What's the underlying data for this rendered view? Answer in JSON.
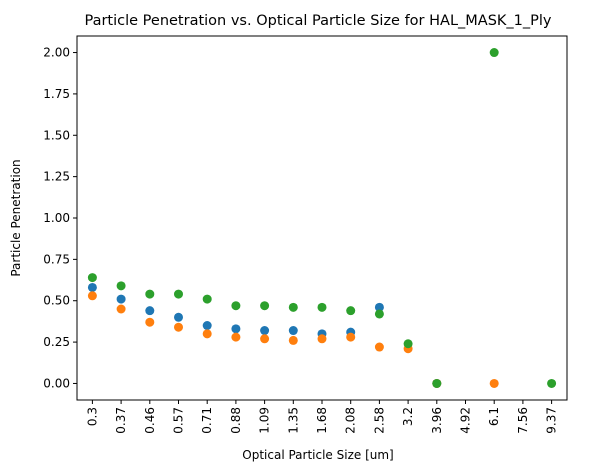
{
  "chart_data": {
    "type": "scatter",
    "title": "Particle Penetration vs. Optical Particle Size for HAL_MASK_1_Ply",
    "xlabel": "Optical Particle Size [um]",
    "ylabel": "Particle Penetration",
    "categories": [
      "0.3",
      "0.37",
      "0.46",
      "0.57",
      "0.71",
      "0.88",
      "1.09",
      "1.35",
      "1.68",
      "2.08",
      "2.58",
      "3.2",
      "3.96",
      "4.92",
      "6.1",
      "7.56",
      "9.37"
    ],
    "ylim": [
      -0.1,
      2.1
    ],
    "yticks": [
      "0.00",
      "0.25",
      "0.50",
      "0.75",
      "1.00",
      "1.25",
      "1.50",
      "1.75",
      "2.00"
    ],
    "grid": false,
    "series": [
      {
        "color": "#1f77b4",
        "values": [
          0.58,
          0.51,
          0.44,
          0.4,
          0.35,
          0.33,
          0.32,
          0.32,
          0.3,
          0.31,
          0.46,
          null,
          0.0,
          null,
          null,
          null,
          null
        ]
      },
      {
        "color": "#ff7f0e",
        "values": [
          0.53,
          0.45,
          0.37,
          0.34,
          0.3,
          0.28,
          0.27,
          0.26,
          0.27,
          0.28,
          0.22,
          0.21,
          0.0,
          null,
          0.0,
          null,
          null
        ]
      },
      {
        "color": "#2ca02c",
        "values": [
          0.64,
          0.59,
          0.54,
          0.54,
          0.51,
          0.47,
          0.47,
          0.46,
          0.46,
          0.44,
          0.42,
          0.24,
          0.0,
          null,
          2.0,
          null,
          0.0
        ]
      }
    ]
  }
}
